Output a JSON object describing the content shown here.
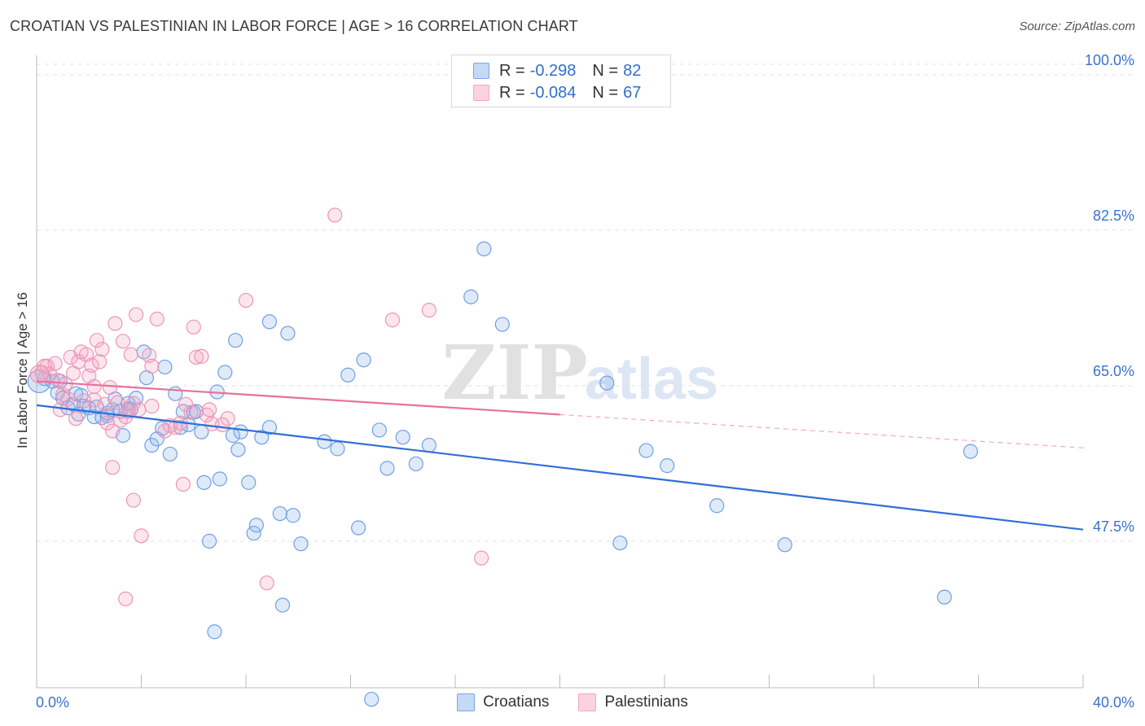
{
  "title": "CROATIAN VS PALESTINIAN IN LABOR FORCE | AGE > 16 CORRELATION CHART",
  "source": "Source: ZipAtlas.com",
  "watermark": {
    "part1": "ZIP",
    "part2": "atlas"
  },
  "legend": {
    "rows": [
      {
        "r_label": "R = ",
        "r_value": "-0.298",
        "n_label": "N = ",
        "n_value": "82",
        "color": "#7aa6e8"
      },
      {
        "r_label": "R = ",
        "r_value": "-0.084",
        "n_label": "N = ",
        "n_value": "67",
        "color": "#f4a6bf"
      }
    ]
  },
  "bottom_legend": [
    {
      "label": "Croatians",
      "color": "#7aa6e8"
    },
    {
      "label": "Palestinians",
      "color": "#f4a6bf"
    }
  ],
  "chart_data": {
    "type": "scatter",
    "ylabel": "In Labor Force | Age > 16",
    "xlabel": "",
    "x_tick_labels": [
      "0.0%",
      "40.0%"
    ],
    "y_tick_labels": [
      "100.0%",
      "82.5%",
      "65.0%",
      "47.5%"
    ],
    "y_ticks": [
      100.0,
      82.5,
      65.0,
      47.5
    ],
    "xlim": [
      0,
      40
    ],
    "ylim": [
      31,
      102
    ],
    "grid": true,
    "legend_position": "top-center",
    "series": [
      {
        "name": "Croatians",
        "color": "#6f9fe6",
        "trend": {
          "x0": 0,
          "y0": 62.8,
          "x1": 40,
          "y1": 48.8,
          "dashed_from": null
        },
        "points": [
          [
            0.3,
            65.8
          ],
          [
            0.6,
            65.5
          ],
          [
            0.8,
            64.2
          ],
          [
            1.0,
            63.6
          ],
          [
            1.2,
            62.5
          ],
          [
            1.4,
            62.9
          ],
          [
            1.5,
            64.1
          ],
          [
            1.7,
            63.9
          ],
          [
            1.8,
            62.7
          ],
          [
            2.0,
            62.5
          ],
          [
            2.2,
            61.5
          ],
          [
            2.3,
            62.6
          ],
          [
            2.5,
            61.4
          ],
          [
            2.7,
            61.6
          ],
          [
            2.9,
            62.3
          ],
          [
            3.0,
            63.5
          ],
          [
            3.2,
            62.1
          ],
          [
            3.3,
            59.4
          ],
          [
            3.5,
            63.0
          ],
          [
            3.6,
            62.3
          ],
          [
            3.8,
            63.6
          ],
          [
            4.1,
            68.8
          ],
          [
            4.2,
            65.9
          ],
          [
            4.4,
            58.3
          ],
          [
            4.6,
            59.0
          ],
          [
            4.8,
            60.2
          ],
          [
            4.9,
            67.1
          ],
          [
            5.1,
            57.3
          ],
          [
            5.3,
            64.1
          ],
          [
            5.5,
            60.3
          ],
          [
            5.6,
            62.1
          ],
          [
            5.8,
            60.6
          ],
          [
            6.0,
            62.0
          ],
          [
            6.1,
            62.1
          ],
          [
            6.3,
            59.8
          ],
          [
            6.4,
            54.1
          ],
          [
            6.6,
            47.5
          ],
          [
            6.8,
            37.3
          ],
          [
            6.9,
            64.3
          ],
          [
            7.0,
            54.5
          ],
          [
            7.2,
            66.5
          ],
          [
            7.5,
            59.4
          ],
          [
            7.6,
            70.1
          ],
          [
            7.7,
            57.8
          ],
          [
            7.8,
            59.8
          ],
          [
            8.1,
            54.1
          ],
          [
            8.3,
            48.4
          ],
          [
            8.4,
            49.3
          ],
          [
            8.6,
            59.2
          ],
          [
            8.9,
            60.3
          ],
          [
            8.9,
            72.2
          ],
          [
            9.3,
            50.6
          ],
          [
            9.4,
            40.3
          ],
          [
            9.6,
            70.9
          ],
          [
            9.8,
            50.4
          ],
          [
            10.1,
            47.2
          ],
          [
            11.0,
            58.7
          ],
          [
            11.5,
            57.9
          ],
          [
            11.9,
            66.2
          ],
          [
            12.3,
            49.0
          ],
          [
            12.5,
            67.9
          ],
          [
            12.8,
            29.7
          ],
          [
            13.1,
            60.0
          ],
          [
            13.4,
            55.7
          ],
          [
            14.0,
            59.2
          ],
          [
            14.5,
            56.2
          ],
          [
            15.0,
            58.3
          ],
          [
            16.6,
            75.0
          ],
          [
            17.1,
            80.4
          ],
          [
            17.8,
            71.9
          ],
          [
            21.8,
            65.3
          ],
          [
            23.3,
            57.7
          ],
          [
            24.1,
            56.0
          ],
          [
            26.0,
            51.5
          ],
          [
            35.7,
            57.6
          ],
          [
            34.7,
            41.2
          ],
          [
            22.3,
            47.3
          ],
          [
            28.6,
            47.1
          ],
          [
            2.7,
            61.9
          ],
          [
            3.5,
            62.4
          ],
          [
            1.6,
            61.8
          ],
          [
            0.9,
            65.5
          ]
        ]
      },
      {
        "name": "Palestinians",
        "color": "#f08fb0",
        "trend": {
          "x0": 0,
          "y0": 65.5,
          "x1": 40,
          "y1": 58.0,
          "dashed_from": 20
        },
        "points": [
          [
            0.2,
            66.5
          ],
          [
            0.4,
            67.2
          ],
          [
            0.5,
            66.3
          ],
          [
            0.7,
            67.5
          ],
          [
            0.8,
            65.6
          ],
          [
            0.9,
            62.3
          ],
          [
            1.0,
            64.0
          ],
          [
            1.1,
            65.2
          ],
          [
            1.3,
            68.2
          ],
          [
            1.4,
            66.4
          ],
          [
            1.5,
            61.3
          ],
          [
            1.6,
            67.7
          ],
          [
            1.7,
            68.8
          ],
          [
            1.8,
            63.3
          ],
          [
            1.9,
            68.5
          ],
          [
            2.0,
            66.1
          ],
          [
            2.1,
            67.3
          ],
          [
            2.2,
            64.9
          ],
          [
            2.3,
            70.1
          ],
          [
            2.4,
            67.7
          ],
          [
            2.5,
            69.1
          ],
          [
            2.6,
            62.9
          ],
          [
            2.7,
            60.8
          ],
          [
            2.8,
            64.8
          ],
          [
            2.9,
            55.8
          ],
          [
            3.0,
            72.0
          ],
          [
            3.2,
            61.1
          ],
          [
            3.3,
            70.0
          ],
          [
            3.4,
            61.5
          ],
          [
            3.5,
            62.1
          ],
          [
            3.6,
            68.5
          ],
          [
            3.7,
            63.0
          ],
          [
            3.8,
            73.0
          ],
          [
            3.9,
            62.3
          ],
          [
            4.0,
            48.1
          ],
          [
            4.3,
            68.4
          ],
          [
            4.4,
            67.2
          ],
          [
            4.6,
            72.5
          ],
          [
            4.9,
            59.9
          ],
          [
            5.1,
            60.5
          ],
          [
            5.3,
            60.3
          ],
          [
            5.5,
            60.8
          ],
          [
            5.6,
            53.9
          ],
          [
            5.9,
            62.0
          ],
          [
            6.0,
            71.6
          ],
          [
            6.1,
            68.2
          ],
          [
            6.3,
            68.3
          ],
          [
            6.5,
            61.7
          ],
          [
            6.7,
            60.7
          ],
          [
            7.1,
            60.6
          ],
          [
            7.3,
            61.3
          ],
          [
            8.0,
            74.6
          ],
          [
            8.8,
            42.8
          ],
          [
            3.4,
            41.0
          ],
          [
            3.7,
            52.1
          ],
          [
            11.4,
            84.2
          ],
          [
            13.6,
            72.4
          ],
          [
            15.0,
            73.5
          ],
          [
            17.0,
            45.6
          ],
          [
            2.9,
            59.9
          ],
          [
            1.2,
            63.5
          ],
          [
            0.3,
            67.2
          ],
          [
            2.2,
            63.4
          ],
          [
            4.4,
            62.7
          ],
          [
            3.1,
            63.1
          ],
          [
            5.7,
            62.9
          ],
          [
            6.6,
            62.3
          ]
        ]
      }
    ]
  }
}
